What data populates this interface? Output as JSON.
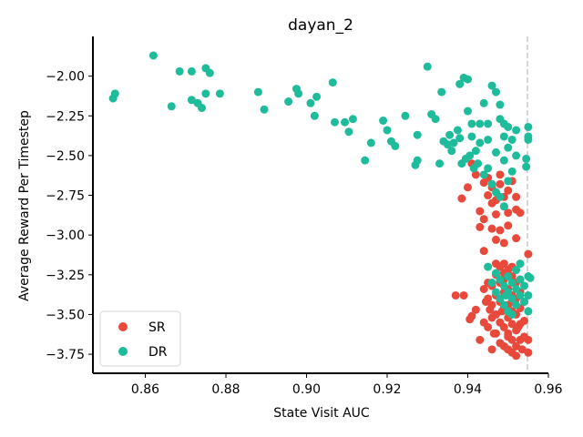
{
  "chart_data": {
    "type": "scatter",
    "title": "dayan_2",
    "xlabel": "State Visit AUC",
    "ylabel": "Average Reward Per Timestep",
    "xlim": [
      0.847,
      0.96
    ],
    "ylim": [
      -3.87,
      -1.75
    ],
    "xticks": [
      0.86,
      0.88,
      0.9,
      0.92,
      0.94,
      0.96
    ],
    "xtick_labels": [
      "0.86",
      "0.88",
      "0.90",
      "0.92",
      "0.94",
      "0.96"
    ],
    "yticks": [
      -3.75,
      -3.5,
      -3.25,
      -3.0,
      -2.75,
      -2.5,
      -2.25,
      -2.0
    ],
    "ytick_labels": [
      "−3.75",
      "−3.50",
      "−3.25",
      "−3.00",
      "−2.75",
      "−2.50",
      "−2.25",
      "−2.00"
    ],
    "vline": {
      "x": 0.9548,
      "style": "dashed",
      "color": "#c8c8c8"
    },
    "grid": false,
    "legend_position": "lower-left",
    "series": [
      {
        "name": "SR",
        "color": "#e8493a",
        "points": [
          [
            0.9385,
            -2.77
          ],
          [
            0.94,
            -2.7
          ],
          [
            0.941,
            -2.55
          ],
          [
            0.942,
            -2.62
          ],
          [
            0.943,
            -2.85
          ],
          [
            0.944,
            -2.9
          ],
          [
            0.944,
            -2.67
          ],
          [
            0.945,
            -2.75
          ],
          [
            0.945,
            -2.64
          ],
          [
            0.946,
            -2.8
          ],
          [
            0.946,
            -2.7
          ],
          [
            0.947,
            -2.78
          ],
          [
            0.947,
            -2.87
          ],
          [
            0.948,
            -2.68
          ],
          [
            0.948,
            -2.62
          ],
          [
            0.949,
            -2.76
          ],
          [
            0.949,
            -2.82
          ],
          [
            0.95,
            -2.72
          ],
          [
            0.95,
            -2.86
          ],
          [
            0.951,
            -2.66
          ],
          [
            0.952,
            -2.76
          ],
          [
            0.952,
            -2.84
          ],
          [
            0.953,
            -2.86
          ],
          [
            0.946,
            -2.96
          ],
          [
            0.948,
            -2.97
          ],
          [
            0.95,
            -2.94
          ],
          [
            0.943,
            -2.95
          ],
          [
            0.944,
            -3.1
          ],
          [
            0.947,
            -3.03
          ],
          [
            0.949,
            -3.05
          ],
          [
            0.952,
            -3.02
          ],
          [
            0.955,
            -3.12
          ],
          [
            0.937,
            -3.38
          ],
          [
            0.939,
            -3.38
          ],
          [
            0.941,
            -3.51
          ],
          [
            0.942,
            -3.47
          ],
          [
            0.943,
            -3.66
          ],
          [
            0.944,
            -3.55
          ],
          [
            0.945,
            -3.3
          ],
          [
            0.945,
            -3.4
          ],
          [
            0.945,
            -3.58
          ],
          [
            0.946,
            -3.32
          ],
          [
            0.946,
            -3.44
          ],
          [
            0.946,
            -3.72
          ],
          [
            0.947,
            -3.25
          ],
          [
            0.947,
            -3.38
          ],
          [
            0.947,
            -3.5
          ],
          [
            0.947,
            -3.62
          ],
          [
            0.948,
            -3.2
          ],
          [
            0.948,
            -3.3
          ],
          [
            0.948,
            -3.42
          ],
          [
            0.948,
            -3.55
          ],
          [
            0.948,
            -3.68
          ],
          [
            0.949,
            -3.18
          ],
          [
            0.949,
            -3.28
          ],
          [
            0.949,
            -3.36
          ],
          [
            0.949,
            -3.46
          ],
          [
            0.949,
            -3.58
          ],
          [
            0.949,
            -3.7
          ],
          [
            0.95,
            -3.22
          ],
          [
            0.95,
            -3.34
          ],
          [
            0.95,
            -3.44
          ],
          [
            0.95,
            -3.52
          ],
          [
            0.95,
            -3.62
          ],
          [
            0.95,
            -3.72
          ],
          [
            0.951,
            -3.26
          ],
          [
            0.951,
            -3.38
          ],
          [
            0.951,
            -3.48
          ],
          [
            0.951,
            -3.56
          ],
          [
            0.951,
            -3.66
          ],
          [
            0.951,
            -3.74
          ],
          [
            0.952,
            -3.3
          ],
          [
            0.952,
            -3.4
          ],
          [
            0.952,
            -3.5
          ],
          [
            0.952,
            -3.6
          ],
          [
            0.952,
            -3.7
          ],
          [
            0.952,
            -3.76
          ],
          [
            0.953,
            -3.36
          ],
          [
            0.953,
            -3.46
          ],
          [
            0.953,
            -3.56
          ],
          [
            0.953,
            -3.66
          ],
          [
            0.954,
            -3.42
          ],
          [
            0.954,
            -3.54
          ],
          [
            0.954,
            -3.64
          ],
          [
            0.955,
            -3.74
          ],
          [
            0.955,
            -3.66
          ],
          [
            0.9405,
            -3.53
          ],
          [
            0.944,
            -3.34
          ],
          [
            0.946,
            -3.52
          ],
          [
            0.9455,
            -3.47
          ],
          [
            0.95,
            -3.64
          ],
          [
            0.951,
            -3.42
          ],
          [
            0.953,
            -3.28
          ],
          [
            0.947,
            -3.18
          ],
          [
            0.949,
            -3.24
          ],
          [
            0.951,
            -3.2
          ],
          [
            0.9465,
            -3.62
          ],
          [
            0.9485,
            -3.48
          ],
          [
            0.9525,
            -3.58
          ],
          [
            0.9535,
            -3.72
          ],
          [
            0.9445,
            -3.42
          ]
        ]
      },
      {
        "name": "DR",
        "color": "#1fbc9c",
        "points": [
          [
            0.852,
            -2.14
          ],
          [
            0.8525,
            -2.11
          ],
          [
            0.862,
            -1.87
          ],
          [
            0.8665,
            -2.19
          ],
          [
            0.8685,
            -1.97
          ],
          [
            0.8715,
            -1.97
          ],
          [
            0.8715,
            -2.15
          ],
          [
            0.873,
            -2.17
          ],
          [
            0.874,
            -2.2
          ],
          [
            0.875,
            -2.11
          ],
          [
            0.875,
            -1.95
          ],
          [
            0.876,
            -1.98
          ],
          [
            0.8785,
            -2.11
          ],
          [
            0.888,
            -2.1
          ],
          [
            0.8895,
            -2.21
          ],
          [
            0.8955,
            -2.16
          ],
          [
            0.8975,
            -2.08
          ],
          [
            0.898,
            -2.11
          ],
          [
            0.901,
            -2.17
          ],
          [
            0.902,
            -2.25
          ],
          [
            0.9025,
            -2.13
          ],
          [
            0.9065,
            -2.04
          ],
          [
            0.907,
            -2.29
          ],
          [
            0.9095,
            -2.29
          ],
          [
            0.9105,
            -2.35
          ],
          [
            0.9115,
            -2.27
          ],
          [
            0.9145,
            -2.53
          ],
          [
            0.916,
            -2.42
          ],
          [
            0.919,
            -2.28
          ],
          [
            0.92,
            -2.34
          ],
          [
            0.921,
            -2.41
          ],
          [
            0.922,
            -2.44
          ],
          [
            0.9245,
            -2.25
          ],
          [
            0.927,
            -2.56
          ],
          [
            0.9275,
            -2.53
          ],
          [
            0.9275,
            -2.37
          ],
          [
            0.93,
            -1.94
          ],
          [
            0.931,
            -2.24
          ],
          [
            0.932,
            -2.27
          ],
          [
            0.933,
            -2.55
          ],
          [
            0.9335,
            -2.1
          ],
          [
            0.934,
            -2.41
          ],
          [
            0.935,
            -2.43
          ],
          [
            0.9355,
            -2.37
          ],
          [
            0.936,
            -2.47
          ],
          [
            0.9365,
            -2.42
          ],
          [
            0.9375,
            -2.34
          ],
          [
            0.938,
            -2.39
          ],
          [
            0.9385,
            -2.55
          ],
          [
            0.938,
            -2.05
          ],
          [
            0.939,
            -2.01
          ],
          [
            0.94,
            -2.02
          ],
          [
            0.94,
            -2.22
          ],
          [
            0.941,
            -2.3
          ],
          [
            0.942,
            -2.47
          ],
          [
            0.941,
            -2.38
          ],
          [
            0.943,
            -2.3
          ],
          [
            0.943,
            -2.42
          ],
          [
            0.944,
            -2.17
          ],
          [
            0.945,
            -2.3
          ],
          [
            0.945,
            -2.4
          ],
          [
            0.946,
            -2.06
          ],
          [
            0.947,
            -2.1
          ],
          [
            0.948,
            -2.18
          ],
          [
            0.948,
            -2.27
          ],
          [
            0.949,
            -2.3
          ],
          [
            0.949,
            -2.38
          ],
          [
            0.95,
            -2.32
          ],
          [
            0.95,
            -2.45
          ],
          [
            0.951,
            -2.4
          ],
          [
            0.952,
            -2.34
          ],
          [
            0.952,
            -2.5
          ],
          [
            0.949,
            -2.53
          ],
          [
            0.947,
            -2.48
          ],
          [
            0.9425,
            -2.55
          ],
          [
            0.944,
            -2.62
          ],
          [
            0.945,
            -2.58
          ],
          [
            0.946,
            -2.68
          ],
          [
            0.947,
            -2.73
          ],
          [
            0.948,
            -2.76
          ],
          [
            0.949,
            -2.82
          ],
          [
            0.95,
            -2.66
          ],
          [
            0.951,
            -2.6
          ],
          [
            0.9545,
            -2.52
          ],
          [
            0.9545,
            -2.57
          ],
          [
            0.955,
            -2.32
          ],
          [
            0.955,
            -2.38
          ],
          [
            0.955,
            -2.4
          ],
          [
            0.9405,
            -2.5
          ],
          [
            0.9415,
            -2.58
          ],
          [
            0.9395,
            -2.52
          ],
          [
            0.945,
            -3.2
          ],
          [
            0.946,
            -3.3
          ],
          [
            0.947,
            -3.24
          ],
          [
            0.947,
            -3.36
          ],
          [
            0.948,
            -3.28
          ],
          [
            0.948,
            -3.4
          ],
          [
            0.949,
            -3.32
          ],
          [
            0.949,
            -3.44
          ],
          [
            0.95,
            -3.26
          ],
          [
            0.95,
            -3.36
          ],
          [
            0.95,
            -3.48
          ],
          [
            0.951,
            -3.3
          ],
          [
            0.951,
            -3.4
          ],
          [
            0.952,
            -3.34
          ],
          [
            0.952,
            -3.44
          ],
          [
            0.953,
            -3.28
          ],
          [
            0.953,
            -3.38
          ],
          [
            0.954,
            -3.32
          ],
          [
            0.954,
            -3.42
          ],
          [
            0.955,
            -3.26
          ],
          [
            0.9555,
            -3.27
          ],
          [
            0.955,
            -3.38
          ],
          [
            0.955,
            -3.48
          ],
          [
            0.952,
            -3.22
          ],
          [
            0.953,
            -3.18
          ],
          [
            0.951,
            -3.5
          ],
          [
            0.9495,
            -3.38
          ]
        ]
      }
    ]
  }
}
